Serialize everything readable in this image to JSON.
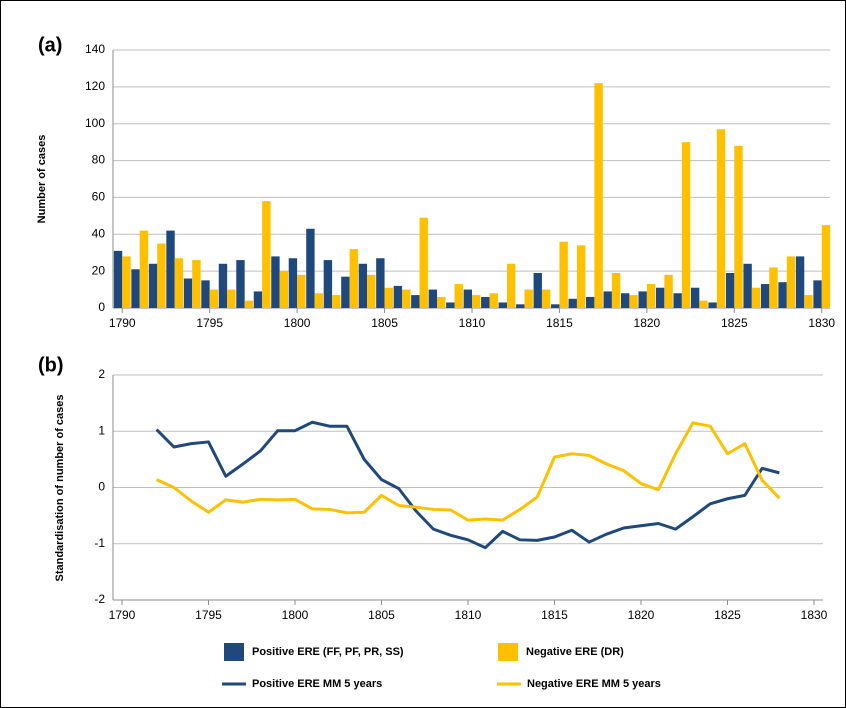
{
  "chart_data": [
    {
      "type": "bar",
      "panel_label": "(a)",
      "y_label": "Number of cases",
      "x": [
        1790,
        1791,
        1792,
        1793,
        1794,
        1795,
        1796,
        1797,
        1798,
        1799,
        1800,
        1801,
        1802,
        1803,
        1804,
        1805,
        1806,
        1807,
        1808,
        1809,
        1810,
        1811,
        1812,
        1813,
        1814,
        1815,
        1816,
        1817,
        1818,
        1819,
        1820,
        1821,
        1822,
        1823,
        1824,
        1825,
        1826,
        1827,
        1828,
        1829,
        1830
      ],
      "series": [
        {
          "name": "Positive ERE (FF, PF, PR, SS)",
          "color": "#1f497d",
          "values": [
            31,
            21,
            24,
            42,
            16,
            15,
            24,
            26,
            9,
            28,
            27,
            43,
            26,
            17,
            24,
            27,
            12,
            7,
            10,
            3,
            10,
            6,
            3,
            2,
            19,
            2,
            5,
            6,
            9,
            8,
            9,
            11,
            8,
            11,
            3,
            19,
            24,
            13,
            14,
            28,
            15
          ]
        },
        {
          "name": "Negative ERE (DR)",
          "color": "#ffc000",
          "values": [
            28,
            42,
            35,
            27,
            26,
            10,
            10,
            4,
            58,
            20,
            18,
            8,
            7,
            32,
            18,
            11,
            10,
            49,
            6,
            13,
            7,
            8,
            24,
            10,
            10,
            36,
            34,
            122,
            19,
            7,
            13,
            18,
            90,
            4,
            97,
            88,
            11,
            22,
            28,
            7,
            45
          ]
        }
      ],
      "xlim": [
        1789.5,
        1830.5
      ],
      "xticks": [
        1790,
        1795,
        1800,
        1805,
        1810,
        1815,
        1820,
        1825,
        1830
      ],
      "ylim": [
        0,
        140
      ],
      "yticks": [
        0,
        20,
        40,
        60,
        80,
        100,
        120,
        140
      ],
      "grid": true,
      "legend": "bottom"
    },
    {
      "type": "line",
      "panel_label": "(b)",
      "y_label": "Standardisation of number of cases",
      "x": [
        1792,
        1793,
        1794,
        1795,
        1796,
        1797,
        1798,
        1799,
        1800,
        1801,
        1802,
        1803,
        1804,
        1805,
        1806,
        1807,
        1808,
        1809,
        1810,
        1811,
        1812,
        1813,
        1814,
        1815,
        1816,
        1817,
        1818,
        1819,
        1820,
        1821,
        1822,
        1823,
        1824,
        1825,
        1826,
        1827,
        1828
      ],
      "series": [
        {
          "name": "Positive ERE MM 5 years",
          "color": "#1f497d",
          "values": [
            1.03,
            0.72,
            0.78,
            0.81,
            0.2,
            0.42,
            0.65,
            1.01,
            1.01,
            1.16,
            1.09,
            1.09,
            0.5,
            0.14,
            -0.02,
            -0.42,
            -0.74,
            -0.85,
            -0.93,
            -1.07,
            -0.78,
            -0.93,
            -0.94,
            -0.88,
            -0.76,
            -0.97,
            -0.83,
            -0.72,
            -0.68,
            -0.64,
            -0.74,
            -0.52,
            -0.29,
            -0.2,
            -0.14,
            0.34,
            0.26
          ]
        },
        {
          "name": "Negative ERE MM 5 years",
          "color": "#ffc000",
          "values": [
            0.14,
            0.0,
            -0.24,
            -0.44,
            -0.22,
            -0.26,
            -0.21,
            -0.22,
            -0.21,
            -0.38,
            -0.39,
            -0.45,
            -0.44,
            -0.14,
            -0.32,
            -0.35,
            -0.39,
            -0.4,
            -0.58,
            -0.56,
            -0.58,
            -0.39,
            -0.17,
            0.54,
            0.6,
            0.57,
            0.42,
            0.3,
            0.07,
            -0.04,
            0.6,
            1.15,
            1.09,
            0.6,
            0.78,
            0.13,
            -0.19
          ]
        }
      ],
      "xlim": [
        1790,
        1830
      ],
      "xticks": [
        1790,
        1795,
        1800,
        1805,
        1810,
        1815,
        1820,
        1825,
        1830
      ],
      "ylim": [
        -2,
        2
      ],
      "yticks": [
        -2,
        -1,
        0,
        1,
        2
      ],
      "grid": true,
      "legend": "bottom"
    }
  ]
}
